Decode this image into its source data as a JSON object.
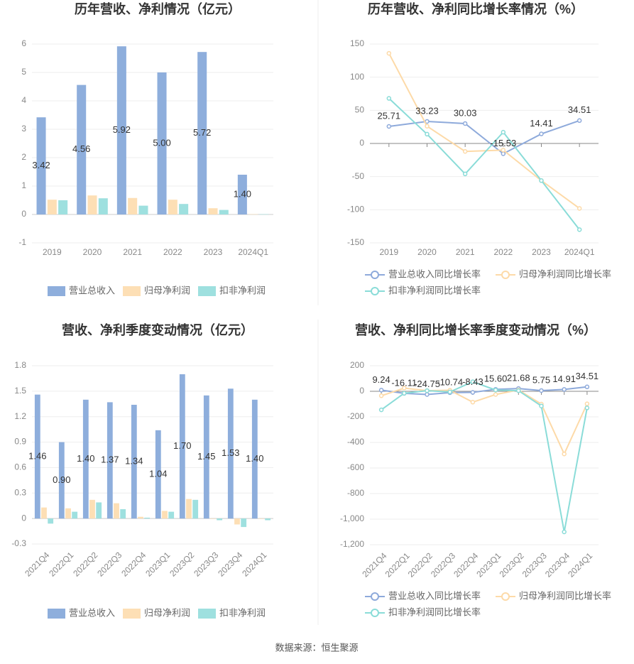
{
  "chart_data": [
    {
      "type": "bar",
      "title": "历年营收、净利情况（亿元）",
      "categories": [
        "2019",
        "2020",
        "2021",
        "2022",
        "2023",
        "2024Q1"
      ],
      "series": [
        {
          "name": "营业总收入",
          "color": "#8eaedc",
          "values": [
            3.42,
            4.56,
            5.92,
            5.0,
            5.72,
            1.4
          ],
          "value_labels": [
            "3.42",
            "4.56",
            "5.92",
            "5.00",
            "5.72",
            "1.40"
          ]
        },
        {
          "name": "归母净利润",
          "color": "#fddfb5",
          "values": [
            0.52,
            0.67,
            0.58,
            0.52,
            0.22,
            0.01
          ]
        },
        {
          "name": "扣非净利润",
          "color": "#9ee0df",
          "values": [
            0.5,
            0.57,
            0.31,
            0.37,
            0.16,
            0.01
          ]
        }
      ],
      "ylim": [
        -1,
        6
      ],
      "yticks": [
        -1,
        0,
        1,
        2,
        3,
        4,
        5,
        6
      ],
      "grid": true
    },
    {
      "type": "line",
      "title": "历年营收、净利同比增长率情况（%）",
      "categories": [
        "2019",
        "2020",
        "2021",
        "2022",
        "2023",
        "2024Q1"
      ],
      "series": [
        {
          "name": "营业总收入同比增长率",
          "color": "#8eaadb",
          "values": [
            25.71,
            33.23,
            30.03,
            -15.53,
            14.41,
            34.51
          ],
          "labels": true
        },
        {
          "name": "归母净利润同比增长率",
          "color": "#fddaa8",
          "values": [
            136,
            26,
            -12,
            -10,
            -56,
            -98
          ]
        },
        {
          "name": "扣非净利润同比增长率",
          "color": "#8adcd8",
          "values": [
            68,
            14,
            -46,
            17,
            -56,
            -130
          ]
        }
      ],
      "ylim": [
        -150,
        150
      ],
      "yticks": [
        -150,
        -100,
        -50,
        0,
        50,
        100,
        150
      ],
      "grid": true
    },
    {
      "type": "bar",
      "title": "营收、净利季度变动情况（亿元）",
      "categories": [
        "2021Q4",
        "2022Q1",
        "2022Q2",
        "2022Q3",
        "2022Q4",
        "2023Q1",
        "2023Q2",
        "2023Q3",
        "2023Q4",
        "2024Q1"
      ],
      "series": [
        {
          "name": "营业总收入",
          "color": "#8eaedc",
          "values": [
            1.46,
            0.9,
            1.4,
            1.37,
            1.34,
            1.04,
            1.7,
            1.45,
            1.53,
            1.4
          ],
          "value_labels": [
            "1.46",
            "0.90",
            "1.40",
            "1.37",
            "1.34",
            "1.04",
            "1.70",
            "1.45",
            "1.53",
            "1.40"
          ]
        },
        {
          "name": "归母净利润",
          "color": "#fddfb5",
          "values": [
            0.13,
            0.12,
            0.22,
            0.18,
            0.02,
            0.09,
            0.23,
            0.0,
            -0.07,
            0.0
          ]
        },
        {
          "name": "扣非净利润",
          "color": "#9ee0df",
          "values": [
            -0.06,
            0.08,
            0.19,
            0.11,
            0.01,
            0.08,
            0.22,
            -0.02,
            -0.1,
            -0.02
          ]
        }
      ],
      "ylim": [
        -0.3,
        1.8
      ],
      "yticks": [
        -0.3,
        0,
        0.3,
        0.6,
        0.9,
        1.2,
        1.5,
        1.8
      ],
      "grid": true
    },
    {
      "type": "line",
      "title": "营收、净利同比增长率季度变动情况（%）",
      "categories": [
        "2021Q4",
        "2022Q1",
        "2022Q2",
        "2022Q3",
        "2022Q4",
        "2023Q1",
        "2023Q2",
        "2023Q3",
        "2023Q4",
        "2024Q1"
      ],
      "series": [
        {
          "name": "营业总收入同比增长率",
          "color": "#8eaadb",
          "values": [
            9.24,
            -16.11,
            -24.75,
            -10.74,
            -8.43,
            15.6,
            21.68,
            5.75,
            14.91,
            34.51
          ],
          "value_labels": [
            "9.24",
            "-16.11",
            "-24.75",
            "-10.74",
            "-8.43",
            "15.60",
            "21.68",
            "5.75",
            "14.91",
            "34.51"
          ],
          "labels": true
        },
        {
          "name": "归母净利润同比增长率",
          "color": "#fddaa8",
          "values": [
            -35,
            25,
            5,
            8,
            -85,
            -25,
            10,
            -100,
            -490,
            -98
          ]
        },
        {
          "name": "扣非净利润同比增长率",
          "color": "#8adcd8",
          "values": [
            -145,
            -15,
            5,
            -5,
            75,
            10,
            5,
            -115,
            -1100,
            -130
          ]
        }
      ],
      "ylim": [
        -1200,
        200
      ],
      "yticks": [
        {
          "value": -1200,
          "label": "-1,200"
        },
        {
          "value": -1000,
          "label": "-1,000"
        },
        -800,
        -600,
        -400,
        -200,
        0,
        200
      ],
      "grid": true
    }
  ],
  "source": "数据来源：恒生聚源"
}
